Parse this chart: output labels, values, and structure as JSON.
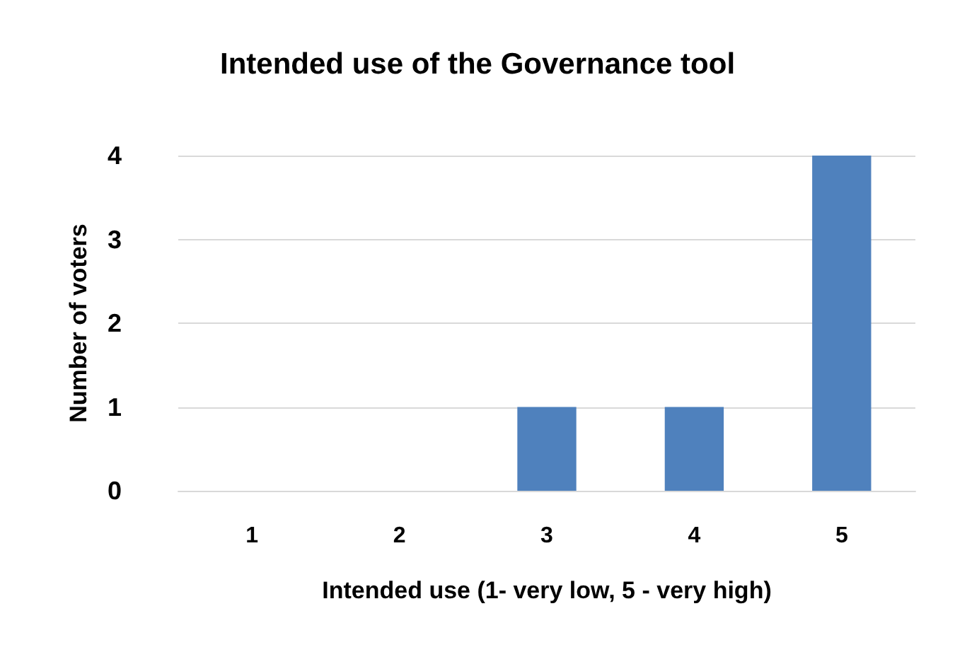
{
  "chart_data": {
    "type": "bar",
    "title": "Intended use of the Governance tool",
    "xlabel": "Intended use (1- very low, 5 - very high)",
    "ylabel": "Number of voters",
    "categories": [
      "1",
      "2",
      "3",
      "4",
      "5"
    ],
    "values": [
      0,
      0,
      1,
      1,
      4
    ],
    "color": "#4f81bd",
    "ylim": [
      0,
      4
    ],
    "yticks": [
      0,
      1,
      2,
      3,
      4
    ],
    "grid": "y"
  }
}
